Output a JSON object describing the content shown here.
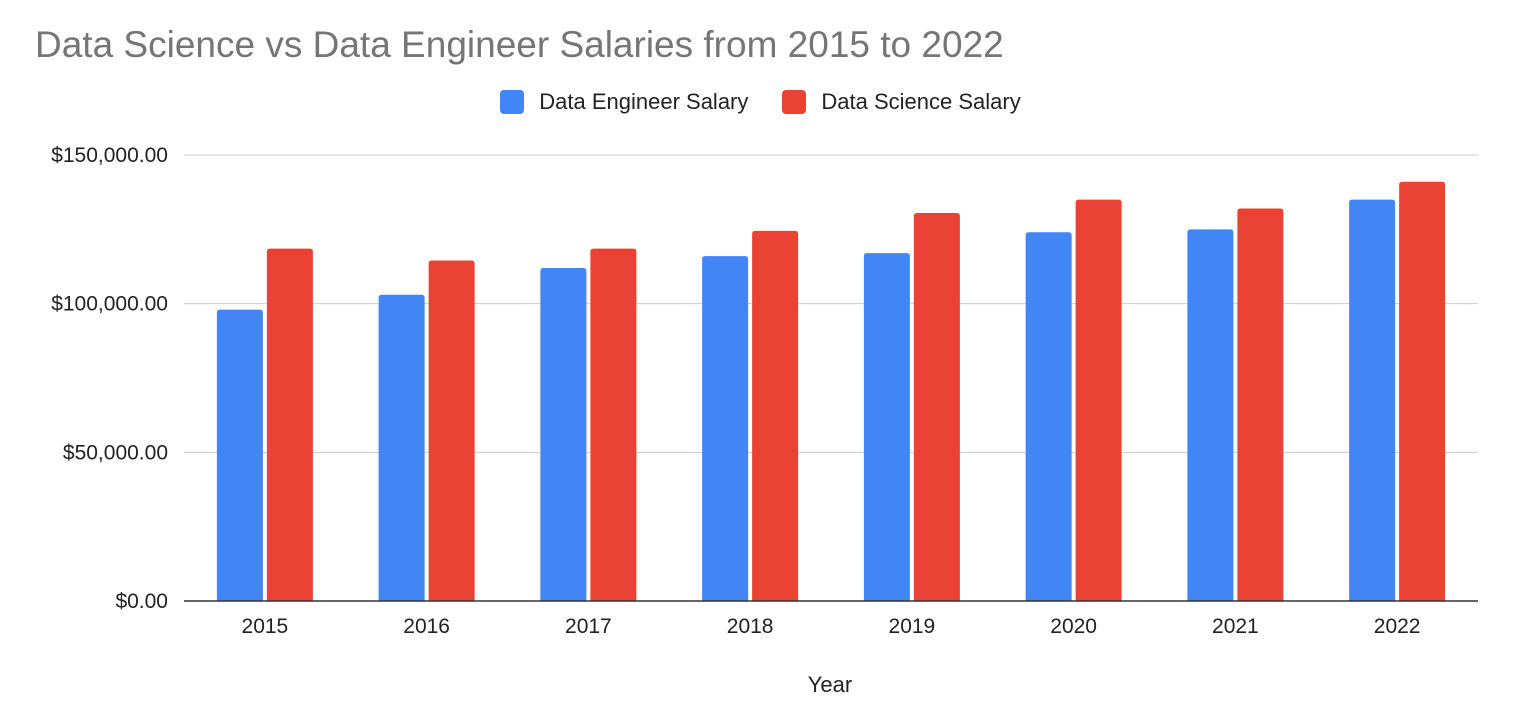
{
  "chart_data": {
    "type": "bar",
    "title": "Data Science vs Data Engineer Salaries from 2015 to 2022",
    "xlabel": "Year",
    "ylabel": "",
    "categories": [
      "2015",
      "2016",
      "2017",
      "2018",
      "2019",
      "2020",
      "2021",
      "2022"
    ],
    "series": [
      {
        "name": "Data Engineer Salary",
        "color": "#4285f4",
        "values": [
          98000,
          103000,
          112000,
          116000,
          117000,
          124000,
          125000,
          135000
        ]
      },
      {
        "name": "Data Science Salary",
        "color": "#ea4335",
        "values": [
          118500,
          114500,
          118500,
          124500,
          130500,
          135000,
          132000,
          141000
        ]
      }
    ],
    "ylim": [
      0,
      150000
    ],
    "yticks": [
      0,
      50000,
      100000,
      150000
    ],
    "ytick_labels": [
      "$0.00",
      "$50,000.00",
      "$100,000.00",
      "$150,000.00"
    ],
    "grid": true,
    "legend_position": "top-center"
  }
}
